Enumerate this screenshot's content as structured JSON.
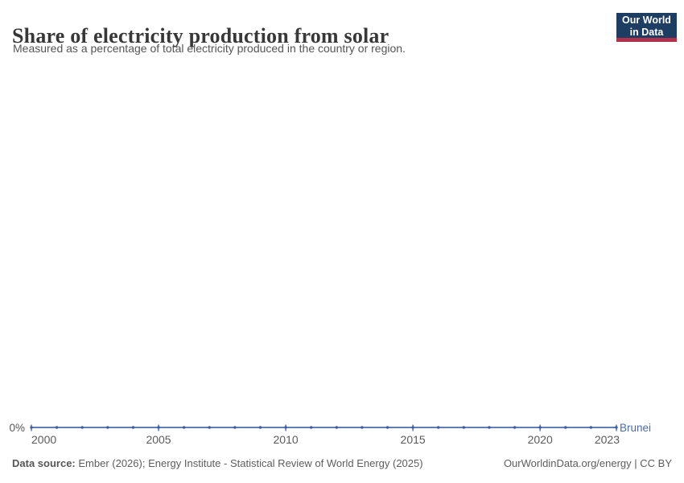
{
  "header": {
    "title": "Share of electricity production from solar",
    "subtitle": "Measured as a percentage of total electricity produced in the country or region.",
    "logo": {
      "line1": "Our World",
      "line2": "in Data"
    }
  },
  "chart_data": {
    "type": "line",
    "title": "Share of electricity production from solar",
    "x": [
      2000,
      2001,
      2002,
      2003,
      2004,
      2005,
      2006,
      2007,
      2008,
      2009,
      2010,
      2011,
      2012,
      2013,
      2014,
      2015,
      2016,
      2017,
      2018,
      2019,
      2020,
      2021,
      2022,
      2023
    ],
    "series": [
      {
        "name": "Brunei",
        "color": "#4a6caa",
        "values": [
          0,
          0,
          0,
          0,
          0,
          0,
          0,
          0,
          0,
          0,
          0,
          0,
          0,
          0,
          0,
          0,
          0,
          0,
          0,
          0,
          0,
          0,
          0,
          0
        ]
      }
    ],
    "x_ticks": [
      2000,
      2005,
      2010,
      2015,
      2020,
      2023
    ],
    "y_tick_label": "0%",
    "xlim": [
      2000,
      2023
    ],
    "ylim": [
      0,
      1
    ],
    "unit": "%",
    "grid": false,
    "legend_position": "end-of-line",
    "marker_color": "#3d5fa0"
  },
  "footer": {
    "source_label": "Data source:",
    "source_text": " Ember (2026); Energy Institute - Statistical Review of World Energy (2025)",
    "attribution": "OurWorldinData.org/energy | CC BY"
  }
}
